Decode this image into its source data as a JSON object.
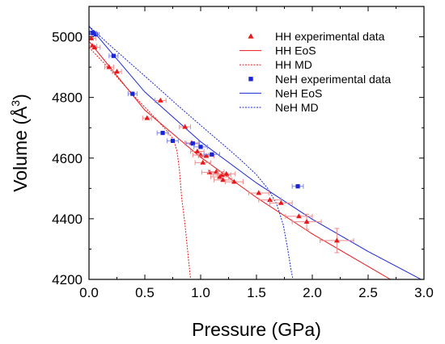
{
  "chart_data": {
    "type": "scatter",
    "xlabel": "Pressure (GPa)",
    "ylabel_main": "Volume (Å",
    "ylabel_sup": "3",
    "ylabel_close": ")",
    "xlim": [
      0.0,
      3.0
    ],
    "ylim": [
      4200,
      5100
    ],
    "x_ticks": [
      "0.0",
      "0.5",
      "1.0",
      "1.5",
      "2.0",
      "2.5",
      "3.0"
    ],
    "y_ticks": [
      "4200",
      "4400",
      "4600",
      "4800",
      "5000"
    ],
    "legend_position": "top-right",
    "series": [
      {
        "name": "HH experimental data",
        "kind": "points",
        "marker": "triangle",
        "color": "#e8191c",
        "points": [
          {
            "x": 0.02,
            "y": 4995,
            "xerr": 0.04,
            "yerr": 0
          },
          {
            "x": 0.03,
            "y": 4970,
            "xerr": 0.04,
            "yerr": 0
          },
          {
            "x": 0.05,
            "y": 4965,
            "xerr": 0.05,
            "yerr": 0
          },
          {
            "x": 0.18,
            "y": 4900,
            "xerr": 0.04,
            "yerr": 0
          },
          {
            "x": 0.25,
            "y": 4885,
            "xerr": 0.04,
            "yerr": 0
          },
          {
            "x": 0.52,
            "y": 4732,
            "xerr": 0.04,
            "yerr": 0
          },
          {
            "x": 0.64,
            "y": 4790,
            "xerr": 0.05,
            "yerr": 0
          },
          {
            "x": 0.86,
            "y": 4703,
            "xerr": 0.05,
            "yerr": 0
          },
          {
            "x": 0.92,
            "y": 4650,
            "xerr": 0.06,
            "yerr": 0
          },
          {
            "x": 0.97,
            "y": 4622,
            "xerr": 0.06,
            "yerr": 0
          },
          {
            "x": 1.0,
            "y": 4610,
            "xerr": 0.07,
            "yerr": 0
          },
          {
            "x": 1.02,
            "y": 4585,
            "xerr": 0.07,
            "yerr": 0
          },
          {
            "x": 1.05,
            "y": 4607,
            "xerr": 0.07,
            "yerr": 0
          },
          {
            "x": 1.08,
            "y": 4553,
            "xerr": 0.07,
            "yerr": 0
          },
          {
            "x": 1.14,
            "y": 4555,
            "xerr": 0.07,
            "yerr": 0
          },
          {
            "x": 1.17,
            "y": 4538,
            "xerr": 0.08,
            "yerr": 0
          },
          {
            "x": 1.19,
            "y": 4545,
            "xerr": 0.08,
            "yerr": 0
          },
          {
            "x": 1.2,
            "y": 4528,
            "xerr": 0.08,
            "yerr": 0
          },
          {
            "x": 1.23,
            "y": 4548,
            "xerr": 0.08,
            "yerr": 0
          },
          {
            "x": 1.3,
            "y": 4522,
            "xerr": 0.08,
            "yerr": 0
          },
          {
            "x": 1.52,
            "y": 4485,
            "xerr": 0.09,
            "yerr": 0
          },
          {
            "x": 1.62,
            "y": 4462,
            "xerr": 0.1,
            "yerr": 0
          },
          {
            "x": 1.72,
            "y": 4452,
            "xerr": 0.1,
            "yerr": 0
          },
          {
            "x": 1.88,
            "y": 4408,
            "xerr": 0.12,
            "yerr": 0
          },
          {
            "x": 1.95,
            "y": 4390,
            "xerr": 0.13,
            "yerr": 25
          },
          {
            "x": 2.22,
            "y": 4328,
            "xerr": 0.15,
            "yerr": 40
          }
        ]
      },
      {
        "name": "HH EoS",
        "kind": "line",
        "style": "solid",
        "color": "#e8191c",
        "points": [
          {
            "x": 0.0,
            "y": 4985
          },
          {
            "x": 0.5,
            "y": 4758
          },
          {
            "x": 1.0,
            "y": 4603
          },
          {
            "x": 1.5,
            "y": 4470
          },
          {
            "x": 2.0,
            "y": 4350
          },
          {
            "x": 2.5,
            "y": 4243
          },
          {
            "x": 2.7,
            "y": 4200
          }
        ]
      },
      {
        "name": "HH MD",
        "kind": "line",
        "style": "dotted",
        "color": "#e8191c",
        "points": [
          {
            "x": 0.0,
            "y": 4965
          },
          {
            "x": 0.2,
            "y": 4888
          },
          {
            "x": 0.4,
            "y": 4806
          },
          {
            "x": 0.6,
            "y": 4730
          },
          {
            "x": 0.7,
            "y": 4688
          },
          {
            "x": 0.76,
            "y": 4660
          },
          {
            "x": 0.79,
            "y": 4620
          },
          {
            "x": 0.81,
            "y": 4560
          },
          {
            "x": 0.83,
            "y": 4470
          },
          {
            "x": 0.86,
            "y": 4380
          },
          {
            "x": 0.89,
            "y": 4270
          },
          {
            "x": 0.91,
            "y": 4200
          }
        ]
      },
      {
        "name": "NeH experimental data",
        "kind": "points",
        "marker": "square",
        "color": "#1a26d6",
        "points": [
          {
            "x": 0.02,
            "y": 5013,
            "xerr": 0.03,
            "yerr": 0
          },
          {
            "x": 0.06,
            "y": 5008,
            "xerr": 0.03,
            "yerr": 0
          },
          {
            "x": 0.04,
            "y": 5012,
            "xerr": 0.03,
            "yerr": 0
          },
          {
            "x": 0.22,
            "y": 4937,
            "xerr": 0.04,
            "yerr": 0
          },
          {
            "x": 0.39,
            "y": 4812,
            "xerr": 0.04,
            "yerr": 0
          },
          {
            "x": 0.66,
            "y": 4683,
            "xerr": 0.05,
            "yerr": 0
          },
          {
            "x": 0.75,
            "y": 4657,
            "xerr": 0.05,
            "yerr": 0
          },
          {
            "x": 0.93,
            "y": 4648,
            "xerr": 0.06,
            "yerr": 0
          },
          {
            "x": 1.0,
            "y": 4637,
            "xerr": 0.06,
            "yerr": 0
          },
          {
            "x": 1.1,
            "y": 4612,
            "xerr": 0.07,
            "yerr": 0
          },
          {
            "x": 1.87,
            "y": 4507,
            "xerr": 0.05,
            "yerr": 0
          }
        ]
      },
      {
        "name": "NeH EoS",
        "kind": "line",
        "style": "solid",
        "color": "#1a26d6",
        "points": [
          {
            "x": 0.0,
            "y": 5035
          },
          {
            "x": 0.5,
            "y": 4818
          },
          {
            "x": 1.0,
            "y": 4654
          },
          {
            "x": 1.5,
            "y": 4518
          },
          {
            "x": 2.0,
            "y": 4398
          },
          {
            "x": 2.5,
            "y": 4292
          },
          {
            "x": 3.0,
            "y": 4195
          }
        ]
      },
      {
        "name": "NeH MD",
        "kind": "line",
        "style": "dotted",
        "color": "#1a26d6",
        "points": [
          {
            "x": 0.0,
            "y": 5035
          },
          {
            "x": 0.2,
            "y": 4968
          },
          {
            "x": 0.4,
            "y": 4903
          },
          {
            "x": 0.6,
            "y": 4838
          },
          {
            "x": 0.8,
            "y": 4772
          },
          {
            "x": 1.0,
            "y": 4708
          },
          {
            "x": 1.2,
            "y": 4645
          },
          {
            "x": 1.35,
            "y": 4597
          },
          {
            "x": 1.5,
            "y": 4545
          },
          {
            "x": 1.6,
            "y": 4500
          },
          {
            "x": 1.68,
            "y": 4450
          },
          {
            "x": 1.74,
            "y": 4380
          },
          {
            "x": 1.78,
            "y": 4300
          },
          {
            "x": 1.81,
            "y": 4230
          },
          {
            "x": 1.83,
            "y": 4195
          }
        ]
      }
    ]
  }
}
